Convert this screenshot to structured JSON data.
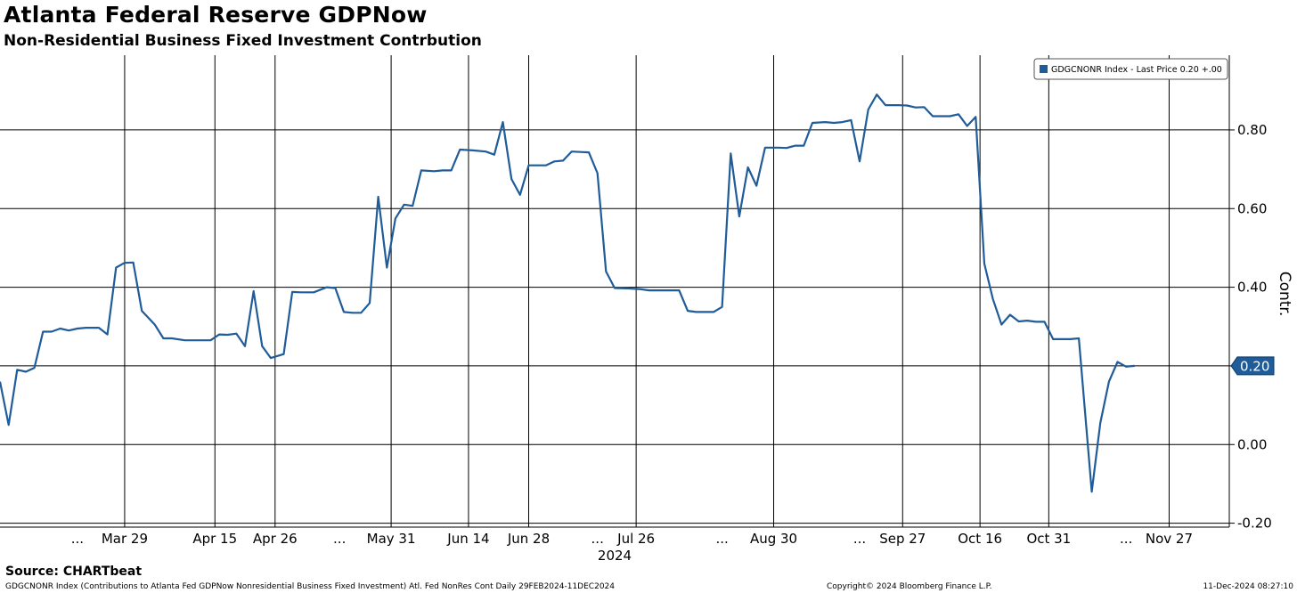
{
  "header": {
    "title": "Atlanta Federal Reserve GDPNow",
    "subtitle": "Non-Residential Business Fixed Investment Contrbution"
  },
  "footer": {
    "source": "Source: CHARTbeat",
    "description": "GDGCNONR Index (Contributions to Atlanta Fed GDPNow Nonresidential Business Fixed Investment) Atl. Fed NonRes Cont  Daily 29FEB2024-11DEC2024",
    "copyright": "Copyright© 2024 Bloomberg Finance L.P.",
    "timestamp": "11-Dec-2024 08:27:10"
  },
  "colors": {
    "series": "#1f5c99",
    "grid": "#000000",
    "background": "#ffffff"
  },
  "chart_data": {
    "type": "line",
    "title": "Atlanta Federal Reserve GDPNow",
    "subtitle": "Non-Residential Business Fixed Investment Contrbution",
    "ylabel": "Contr.",
    "xlabel": "2024",
    "ylim": [
      -0.21,
      0.99
    ],
    "xlim": [
      0,
      286
    ],
    "yticks": [
      {
        "value": 0.8,
        "label": "0.80"
      },
      {
        "value": 0.6,
        "label": "0.60"
      },
      {
        "value": 0.4,
        "label": "0.40"
      },
      {
        "value": 0.2,
        "label": "0.20"
      },
      {
        "value": 0.0,
        "label": "0.00"
      },
      {
        "value": -0.2,
        "label": "-0.20"
      }
    ],
    "xticks": [
      {
        "day": 18,
        "label": "..."
      },
      {
        "day": 29,
        "label": "Mar 29"
      },
      {
        "day": 50,
        "label": "Apr 15"
      },
      {
        "day": 64,
        "label": "Apr 26"
      },
      {
        "day": 79,
        "label": "..."
      },
      {
        "day": 91,
        "label": "May 31"
      },
      {
        "day": 109,
        "label": "Jun 14"
      },
      {
        "day": 123,
        "label": "Jun 28"
      },
      {
        "day": 139,
        "label": "..."
      },
      {
        "day": 148,
        "label": "Jul 26"
      },
      {
        "day": 168,
        "label": "..."
      },
      {
        "day": 180,
        "label": "Aug 30"
      },
      {
        "day": 200,
        "label": "..."
      },
      {
        "day": 210,
        "label": "Sep 27"
      },
      {
        "day": 228,
        "label": "Oct 16"
      },
      {
        "day": 244,
        "label": "Oct 31"
      },
      {
        "day": 262,
        "label": "..."
      },
      {
        "day": 272,
        "label": "Nov 27"
      }
    ],
    "year_label": "2024",
    "last_value_label": "0.20",
    "legend": {
      "text": "GDGCNONR Index - Last Price 0.20  +.00",
      "position": "top-right"
    },
    "series": [
      {
        "name": "GDGCNONR Index",
        "points": [
          [
            0,
            0.16
          ],
          [
            2,
            0.05
          ],
          [
            4,
            0.19
          ],
          [
            6,
            0.185
          ],
          [
            8,
            0.195
          ],
          [
            10,
            0.287
          ],
          [
            12,
            0.287
          ],
          [
            14,
            0.295
          ],
          [
            16,
            0.29
          ],
          [
            18,
            0.295
          ],
          [
            20,
            0.297
          ],
          [
            23,
            0.297
          ],
          [
            25,
            0.28
          ],
          [
            27,
            0.45
          ],
          [
            29,
            0.462
          ],
          [
            31,
            0.463
          ],
          [
            33,
            0.34
          ],
          [
            36,
            0.305
          ],
          [
            38,
            0.27
          ],
          [
            40,
            0.27
          ],
          [
            43,
            0.265
          ],
          [
            46,
            0.265
          ],
          [
            49,
            0.265
          ],
          [
            51,
            0.28
          ],
          [
            53,
            0.279
          ],
          [
            55,
            0.282
          ],
          [
            57,
            0.25
          ],
          [
            59,
            0.39
          ],
          [
            61,
            0.25
          ],
          [
            63,
            0.22
          ],
          [
            66,
            0.23
          ],
          [
            68,
            0.388
          ],
          [
            70,
            0.387
          ],
          [
            73,
            0.387
          ],
          [
            76,
            0.4
          ],
          [
            78,
            0.398
          ],
          [
            80,
            0.337
          ],
          [
            82,
            0.335
          ],
          [
            84,
            0.335
          ],
          [
            86,
            0.36
          ],
          [
            88,
            0.63
          ],
          [
            90,
            0.45
          ],
          [
            92,
            0.575
          ],
          [
            94,
            0.61
          ],
          [
            96,
            0.607
          ],
          [
            98,
            0.697
          ],
          [
            101,
            0.695
          ],
          [
            103,
            0.697
          ],
          [
            105,
            0.697
          ],
          [
            107,
            0.75
          ],
          [
            110,
            0.748
          ],
          [
            113,
            0.745
          ],
          [
            115,
            0.737
          ],
          [
            117,
            0.82
          ],
          [
            119,
            0.675
          ],
          [
            121,
            0.635
          ],
          [
            123,
            0.71
          ],
          [
            125,
            0.71
          ],
          [
            127,
            0.71
          ],
          [
            129,
            0.72
          ],
          [
            131,
            0.722
          ],
          [
            133,
            0.745
          ],
          [
            135,
            0.744
          ],
          [
            137,
            0.743
          ],
          [
            139,
            0.69
          ],
          [
            141,
            0.44
          ],
          [
            143,
            0.398
          ],
          [
            146,
            0.397
          ],
          [
            149,
            0.395
          ],
          [
            151,
            0.392
          ],
          [
            153,
            0.392
          ],
          [
            156,
            0.392
          ],
          [
            158,
            0.392
          ],
          [
            160,
            0.34
          ],
          [
            162,
            0.337
          ],
          [
            164,
            0.337
          ],
          [
            166,
            0.337
          ],
          [
            168,
            0.35
          ],
          [
            170,
            0.74
          ],
          [
            172,
            0.58
          ],
          [
            174,
            0.705
          ],
          [
            176,
            0.658
          ],
          [
            178,
            0.755
          ],
          [
            181,
            0.755
          ],
          [
            183,
            0.754
          ],
          [
            185,
            0.76
          ],
          [
            187,
            0.76
          ],
          [
            189,
            0.818
          ],
          [
            192,
            0.82
          ],
          [
            194,
            0.818
          ],
          [
            196,
            0.82
          ],
          [
            198,
            0.825
          ],
          [
            200,
            0.72
          ],
          [
            202,
            0.852
          ],
          [
            204,
            0.89
          ],
          [
            206,
            0.863
          ],
          [
            209,
            0.863
          ],
          [
            211,
            0.862
          ],
          [
            213,
            0.857
          ],
          [
            215,
            0.858
          ],
          [
            217,
            0.835
          ],
          [
            219,
            0.835
          ],
          [
            221,
            0.835
          ],
          [
            223,
            0.84
          ],
          [
            225,
            0.81
          ],
          [
            227,
            0.833
          ],
          [
            229,
            0.46
          ],
          [
            231,
            0.37
          ],
          [
            233,
            0.305
          ],
          [
            235,
            0.33
          ],
          [
            237,
            0.313
          ],
          [
            239,
            0.315
          ],
          [
            241,
            0.312
          ],
          [
            243,
            0.312
          ],
          [
            245,
            0.268
          ],
          [
            247,
            0.268
          ],
          [
            249,
            0.268
          ],
          [
            251,
            0.27
          ],
          [
            254,
            -0.12
          ],
          [
            256,
            0.055
          ],
          [
            258,
            0.16
          ],
          [
            260,
            0.21
          ],
          [
            262,
            0.198
          ],
          [
            264,
            0.2
          ]
        ]
      }
    ]
  }
}
